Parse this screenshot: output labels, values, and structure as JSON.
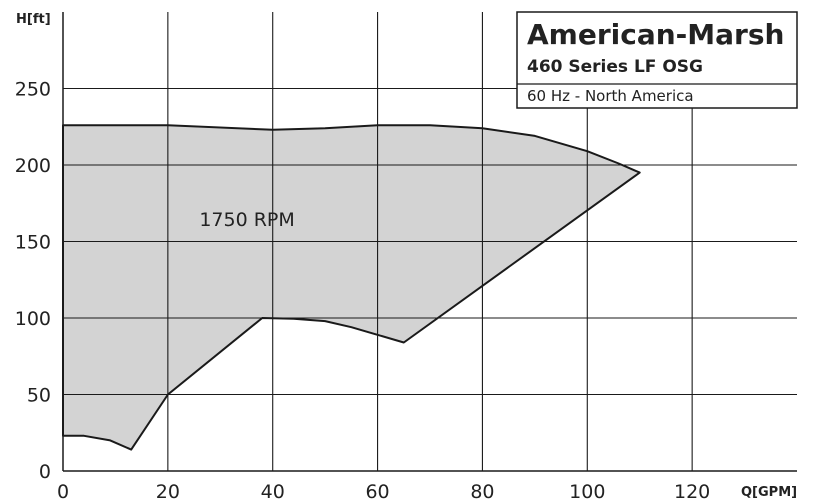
{
  "chart_data": {
    "type": "area",
    "xlabel": "Q[GPM]",
    "ylabel": "H[ft]",
    "xlim": [
      0,
      140
    ],
    "ylim": [
      0,
      300
    ],
    "xticks": [
      0,
      20,
      40,
      60,
      80,
      100,
      120
    ],
    "yticks": [
      0,
      50,
      100,
      150,
      200,
      250
    ],
    "grid": true,
    "title_block": {
      "brand": "American-Marsh",
      "series": "460 Series LF OSG",
      "note": "60 Hz - North America"
    },
    "regions": [
      {
        "label": "1750 RPM",
        "label_position": [
          26,
          160
        ],
        "fill": "#d3d3d3",
        "outline": [
          [
            0,
            226
          ],
          [
            20,
            226
          ],
          [
            40,
            223
          ],
          [
            50,
            224
          ],
          [
            60,
            226
          ],
          [
            70,
            226
          ],
          [
            80,
            224
          ],
          [
            90,
            219
          ],
          [
            100,
            209
          ],
          [
            106,
            201
          ],
          [
            110,
            195
          ],
          [
            65,
            84
          ],
          [
            59,
            90
          ],
          [
            55,
            94
          ],
          [
            50,
            98
          ],
          [
            44,
            99.5
          ],
          [
            38,
            100
          ],
          [
            20,
            50
          ],
          [
            13,
            14
          ],
          [
            9,
            20
          ],
          [
            4,
            23
          ],
          [
            0,
            23
          ]
        ]
      }
    ]
  },
  "colors": {
    "fill": "#d3d3d3",
    "line": "#1a1a1a",
    "grid": "#1a1a1a"
  }
}
